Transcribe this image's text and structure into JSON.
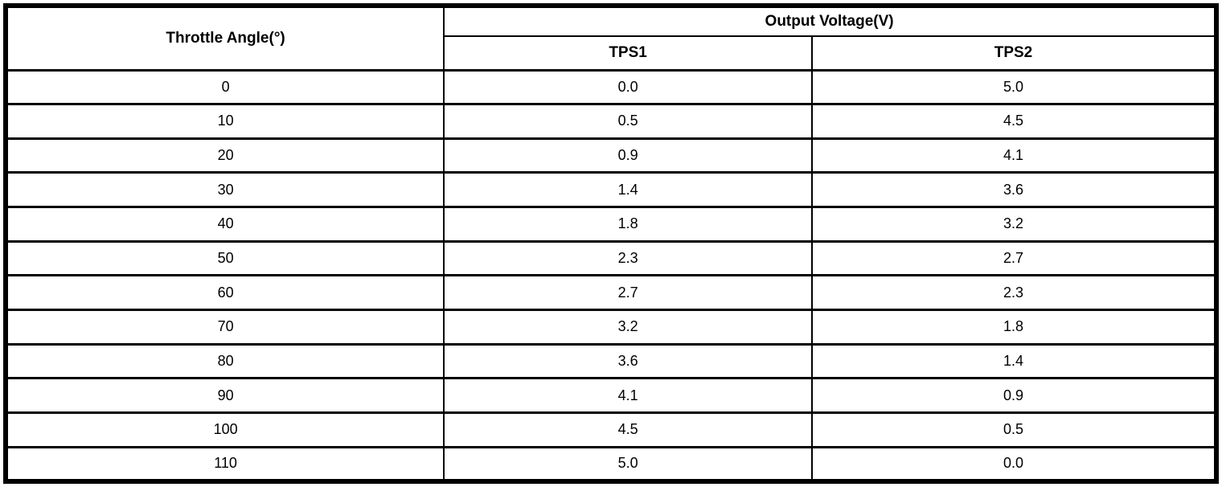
{
  "table": {
    "angle_header": "Throttle Angle(°)",
    "voltage_group_header": "Output Voltage(V)",
    "sub_headers": {
      "tps1": "TPS1",
      "tps2": "TPS2"
    },
    "rows": [
      {
        "angle": "0",
        "tps1": "0.0",
        "tps2": "5.0"
      },
      {
        "angle": "10",
        "tps1": "0.5",
        "tps2": "4.5"
      },
      {
        "angle": "20",
        "tps1": "0.9",
        "tps2": "4.1"
      },
      {
        "angle": "30",
        "tps1": "1.4",
        "tps2": "3.6"
      },
      {
        "angle": "40",
        "tps1": "1.8",
        "tps2": "3.2"
      },
      {
        "angle": "50",
        "tps1": "2.3",
        "tps2": "2.7"
      },
      {
        "angle": "60",
        "tps1": "2.7",
        "tps2": "2.3"
      },
      {
        "angle": "70",
        "tps1": "3.2",
        "tps2": "1.8"
      },
      {
        "angle": "80",
        "tps1": "3.6",
        "tps2": "1.4"
      },
      {
        "angle": "90",
        "tps1": "4.1",
        "tps2": "0.9"
      },
      {
        "angle": "100",
        "tps1": "4.5",
        "tps2": "0.5"
      },
      {
        "angle": "110",
        "tps1": "5.0",
        "tps2": "0.0"
      }
    ]
  },
  "colors": {
    "border": "#000000",
    "background": "#ffffff",
    "text": "#000000"
  }
}
